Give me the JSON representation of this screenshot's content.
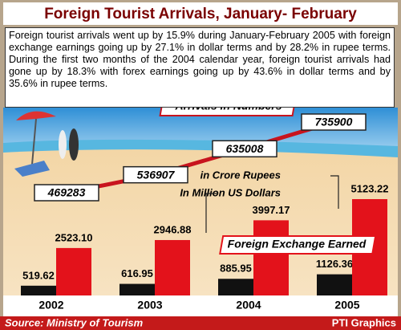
{
  "header": {
    "title": "Foreign Tourist Arrivals, January- February",
    "text": "Foreign tourist arrivals went up by 15.9% during January-February 2005 with foreign exchange earnings going up by 27.1% in dollar terms and by 28.2% in rupee terms. During the first two months of the 2004 calendar year, foreign tourist arrivals had gone up by 18.3% with forex earnings going up by 43.6% in dollar terms and by 35.6% in rupee terms."
  },
  "chart_data": [
    {
      "type": "line",
      "title": "Arrivals in Numbers",
      "series": [
        {
          "color": "#c8141e",
          "values": [
            469283,
            536907,
            635008,
            735900
          ]
        }
      ]
    },
    {
      "type": "bar",
      "title": "Foreign Exchange Earned",
      "categories": [
        "2002",
        "2003",
        "2004",
        "2005"
      ],
      "series": [
        {
          "name": "In Million US Dollars",
          "color": "#111111",
          "values": [
            519.62,
            616.95,
            885.95,
            1126.36
          ]
        },
        {
          "name": "in Crore Rupees",
          "color": "#e3121b",
          "values": [
            2523.1,
            2946.88,
            3997.17,
            5123.22
          ],
          "value_labels": [
            "2523.10",
            "2946.88",
            "3997.17",
            "5123.22"
          ]
        }
      ]
    }
  ],
  "footer": {
    "source": "Source: Ministry of Tourism",
    "credit": "PTI Graphics"
  }
}
